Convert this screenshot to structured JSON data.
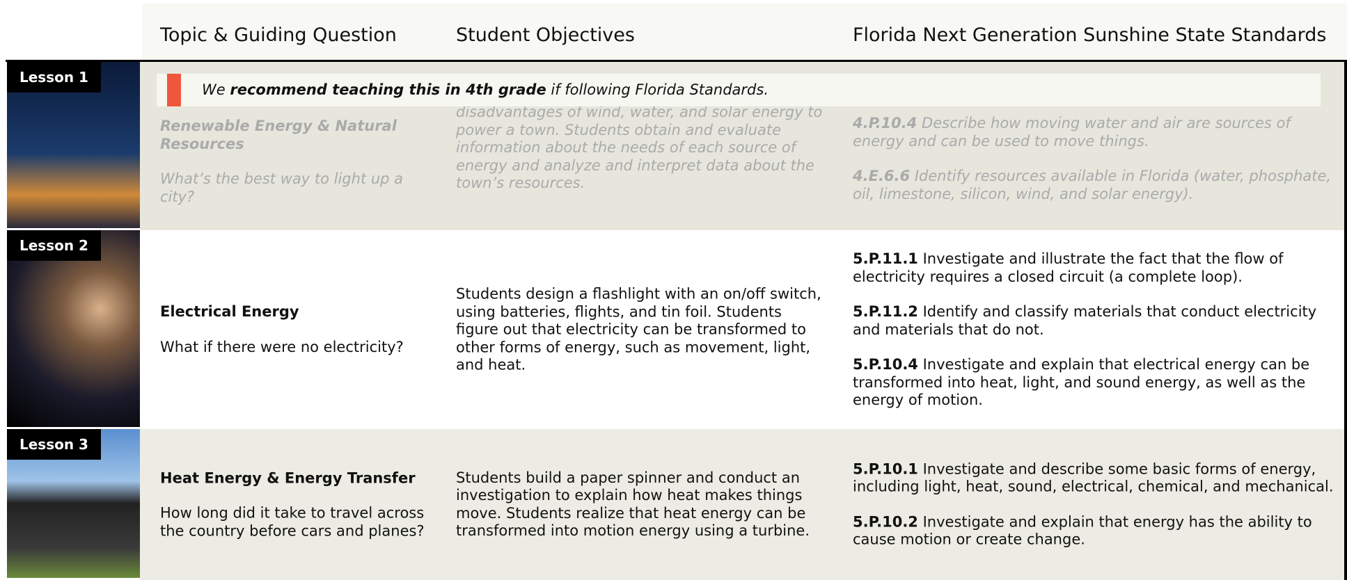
{
  "header": {
    "columns": [
      "Topic & Guiding Question",
      "Student Objectives",
      "Florida Next Generation Sunshine State Standards"
    ]
  },
  "banner": {
    "prefix": "We",
    "bold": "recommend teaching this in 4th grade",
    "suffix": "if following Florida Standards."
  },
  "lessons": [
    {
      "label": "Lesson 1",
      "topic": "Renewable Energy & Natural Resources",
      "question": "What’s the best way to light up a city?",
      "objectives": "disadvantages of wind, water, and solar energy to power a town. Students obtain and evaluate information about the needs of each source of energy and analyze and interpret data about the town’s resources.",
      "standards": [
        {
          "code": "4.P.10.4",
          "text": "Describe how moving water and air are sources of energy and can be used to move things."
        },
        {
          "code": "4.E.6.6",
          "text": "Identify resources available in Florida (water, phosphate, oil, limestone, silicon, wind, and solar energy)."
        }
      ]
    },
    {
      "label": "Lesson 2",
      "topic": "Electrical Energy",
      "question": "What if there were no electricity?",
      "objectives": "Students design a flashlight with an on/off switch, using batteries, flights, and tin foil. Students figure out that electricity can be transformed to other forms of energy, such as movement, light, and heat.",
      "standards": [
        {
          "code": "5.P.11.1",
          "text": "Investigate and illustrate the fact that the flow of electricity requires a closed circuit (a complete loop)."
        },
        {
          "code": "5.P.11.2",
          "text": "Identify and classify materials that conduct electricity and materials that do not."
        },
        {
          "code": "5.P.10.4",
          "text": "Investigate and explain that electrical energy can be transformed into heat, light, and sound energy, as well as the energy of motion."
        }
      ]
    },
    {
      "label": "Lesson 3",
      "topic": "Heat Energy & Energy Transfer",
      "question": "How long did it take to travel across the country before cars and planes?",
      "objectives": "Students build a paper spinner and conduct an investigation to explain how heat makes things move. Students realize that heat energy can be transformed into motion energy using a turbine.",
      "standards": [
        {
          "code": "5.P.10.1",
          "text": "Investigate and describe some basic forms of energy, including light, heat, sound, electrical, chemical, and mechanical."
        },
        {
          "code": "5.P.10.2",
          "text": "Investigate and explain that energy has the ability to cause motion or create change."
        }
      ]
    }
  ]
}
